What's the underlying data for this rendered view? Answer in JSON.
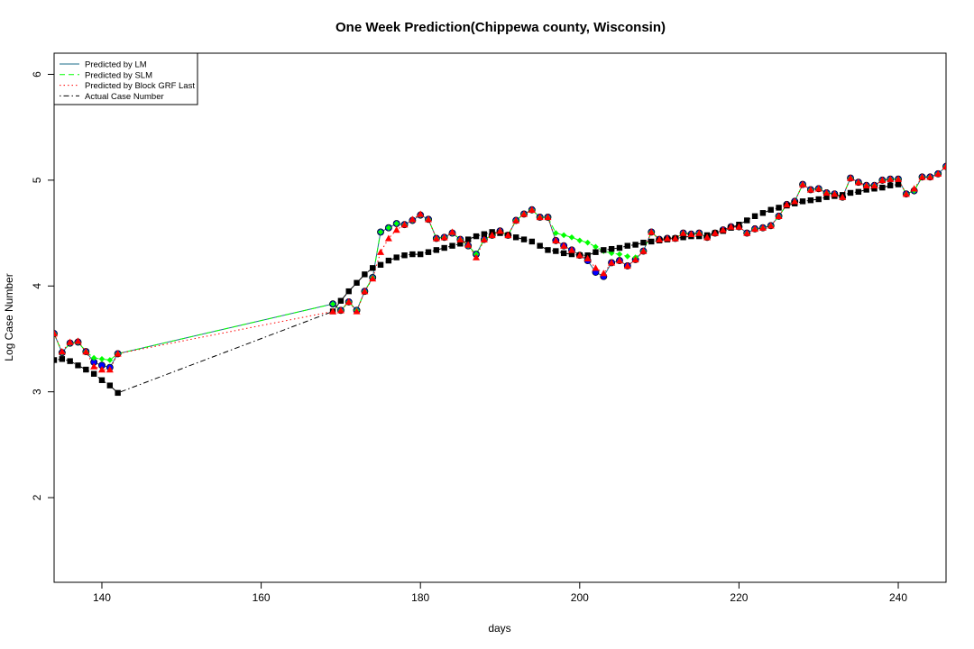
{
  "chart_data": {
    "type": "line",
    "title": "One Week Prediction(Chippewa county, Wisconsin)",
    "xlabel": "days",
    "ylabel": "Log Case Number",
    "xlim": [
      134,
      246
    ],
    "ylim": [
      1.2,
      6.2
    ],
    "xticks": [
      140,
      160,
      180,
      200,
      220,
      240
    ],
    "yticks": [
      2,
      3,
      4,
      5,
      6
    ],
    "legend_position": "top-left",
    "grid": false,
    "series": [
      {
        "name": "Predicted by LM",
        "color": "#0000ff",
        "line_style": "solid",
        "marker": "circle",
        "x": [
          134,
          135,
          136,
          137,
          138,
          139,
          140,
          141,
          142,
          169,
          170,
          171,
          172,
          173,
          174,
          175,
          176,
          177,
          178,
          179,
          180,
          181,
          182,
          183,
          184,
          185,
          186,
          187,
          188,
          189,
          190,
          191,
          192,
          193,
          194,
          195,
          196,
          197,
          198,
          199,
          200,
          201,
          202,
          203,
          204,
          205,
          206,
          207,
          208,
          209,
          210,
          211,
          212,
          213,
          214,
          215,
          216,
          217,
          218,
          219,
          220,
          221,
          222,
          223,
          224,
          225,
          226,
          227,
          228,
          229,
          230,
          231,
          232,
          233,
          234,
          235,
          236,
          237,
          238,
          239,
          240,
          241,
          242,
          243,
          244,
          245,
          246
        ],
        "y": [
          3.55,
          3.37,
          3.46,
          3.47,
          3.38,
          3.28,
          3.25,
          3.23,
          3.36,
          3.83,
          3.77,
          3.85,
          3.77,
          3.95,
          4.08,
          4.51,
          4.55,
          4.59,
          4.58,
          4.62,
          4.67,
          4.63,
          4.45,
          4.46,
          4.5,
          4.44,
          4.38,
          4.3,
          4.44,
          4.48,
          4.52,
          4.48,
          4.62,
          4.68,
          4.72,
          4.65,
          4.65,
          4.43,
          4.38,
          4.34,
          4.29,
          4.24,
          4.13,
          4.09,
          4.22,
          4.24,
          4.19,
          4.25,
          4.33,
          4.51,
          4.44,
          4.45,
          4.45,
          4.5,
          4.49,
          4.5,
          4.46,
          4.5,
          4.53,
          4.56,
          4.56,
          4.5,
          4.54,
          4.55,
          4.57,
          4.66,
          4.77,
          4.8,
          4.96,
          4.91,
          4.92,
          4.88,
          4.87,
          4.84,
          5.02,
          4.98,
          4.95,
          4.95,
          5.0,
          5.01,
          5.01,
          4.87,
          4.9,
          5.03,
          5.03,
          5.06,
          5.13
        ]
      },
      {
        "name": "Predicted by SLM",
        "color": "#00ff00",
        "line_style": "dashed",
        "marker": "diamond",
        "x": [
          134,
          135,
          136,
          137,
          138,
          139,
          140,
          141,
          142,
          169,
          170,
          171,
          172,
          173,
          174,
          175,
          176,
          177,
          178,
          179,
          180,
          181,
          182,
          183,
          184,
          185,
          186,
          187,
          188,
          189,
          190,
          191,
          192,
          193,
          194,
          195,
          196,
          197,
          198,
          199,
          200,
          201,
          202,
          203,
          204,
          205,
          206,
          207,
          208,
          209,
          210,
          211,
          212,
          213,
          214,
          215,
          216,
          217,
          218,
          219,
          220,
          221,
          222,
          223,
          224,
          225,
          226,
          227,
          228,
          229,
          230,
          231,
          232,
          233,
          234,
          235,
          236,
          237,
          238,
          239,
          240,
          241,
          242,
          243,
          244,
          245,
          246
        ],
        "y": [
          3.55,
          3.37,
          3.46,
          3.47,
          3.38,
          3.32,
          3.31,
          3.3,
          3.36,
          3.83,
          3.77,
          3.85,
          3.77,
          3.95,
          4.08,
          4.51,
          4.55,
          4.59,
          4.58,
          4.62,
          4.67,
          4.63,
          4.45,
          4.46,
          4.5,
          4.44,
          4.38,
          4.3,
          4.44,
          4.48,
          4.52,
          4.48,
          4.62,
          4.68,
          4.72,
          4.65,
          4.65,
          4.5,
          4.48,
          4.46,
          4.43,
          4.41,
          4.37,
          4.33,
          4.31,
          4.3,
          4.28,
          4.27,
          4.33,
          4.51,
          4.44,
          4.45,
          4.45,
          4.5,
          4.49,
          4.5,
          4.46,
          4.5,
          4.53,
          4.56,
          4.56,
          4.5,
          4.54,
          4.55,
          4.57,
          4.66,
          4.77,
          4.8,
          4.96,
          4.91,
          4.92,
          4.88,
          4.87,
          4.84,
          5.02,
          4.98,
          4.95,
          4.95,
          5.0,
          5.01,
          5.01,
          4.87,
          4.9,
          5.03,
          5.03,
          5.06,
          5.13
        ]
      },
      {
        "name": "Predicted by Block GRF Last",
        "color": "#ff0000",
        "line_style": "dotted",
        "marker": "triangle",
        "x": [
          134,
          135,
          136,
          137,
          138,
          139,
          140,
          141,
          142,
          169,
          170,
          171,
          172,
          173,
          174,
          175,
          176,
          177,
          178,
          179,
          180,
          181,
          182,
          183,
          184,
          185,
          186,
          187,
          188,
          189,
          190,
          191,
          192,
          193,
          194,
          195,
          196,
          197,
          198,
          199,
          200,
          201,
          202,
          203,
          204,
          205,
          206,
          207,
          208,
          209,
          210,
          211,
          212,
          213,
          214,
          215,
          216,
          217,
          218,
          219,
          220,
          221,
          222,
          223,
          224,
          225,
          226,
          227,
          228,
          229,
          230,
          231,
          232,
          233,
          234,
          235,
          236,
          237,
          238,
          239,
          240,
          241,
          242,
          243,
          244,
          245,
          246
        ],
        "y": [
          3.55,
          3.38,
          3.47,
          3.48,
          3.38,
          3.24,
          3.21,
          3.21,
          3.36,
          3.76,
          3.77,
          3.85,
          3.76,
          3.95,
          4.07,
          4.32,
          4.45,
          4.53,
          4.58,
          4.63,
          4.68,
          4.63,
          4.45,
          4.46,
          4.51,
          4.44,
          4.39,
          4.27,
          4.44,
          4.48,
          4.52,
          4.48,
          4.62,
          4.68,
          4.72,
          4.65,
          4.65,
          4.43,
          4.38,
          4.34,
          4.29,
          4.26,
          4.17,
          4.12,
          4.22,
          4.24,
          4.19,
          4.25,
          4.33,
          4.51,
          4.44,
          4.45,
          4.45,
          4.5,
          4.49,
          4.5,
          4.46,
          4.5,
          4.53,
          4.56,
          4.56,
          4.5,
          4.54,
          4.55,
          4.57,
          4.66,
          4.77,
          4.8,
          4.96,
          4.91,
          4.92,
          4.88,
          4.87,
          4.84,
          5.02,
          4.98,
          4.95,
          4.95,
          5.0,
          5.01,
          5.01,
          4.87,
          4.92,
          5.03,
          5.03,
          5.06,
          5.13
        ]
      },
      {
        "name": "Actual Case Number",
        "color": "#000000",
        "line_style": "dotdash",
        "marker": "square",
        "x": [
          134,
          135,
          136,
          137,
          138,
          139,
          140,
          141,
          142,
          169,
          170,
          171,
          172,
          173,
          174,
          175,
          176,
          177,
          178,
          179,
          180,
          181,
          182,
          183,
          184,
          185,
          186,
          187,
          188,
          189,
          190,
          191,
          192,
          193,
          194,
          195,
          196,
          197,
          198,
          199,
          200,
          201,
          202,
          203,
          204,
          205,
          206,
          207,
          208,
          209,
          210,
          211,
          212,
          213,
          214,
          215,
          216,
          217,
          218,
          219,
          220,
          221,
          222,
          223,
          224,
          225,
          226,
          227,
          228,
          229,
          230,
          231,
          232,
          233,
          234,
          235,
          236,
          237,
          238,
          239,
          240,
          241,
          242,
          243,
          244,
          245,
          246
        ],
        "y": [
          3.3,
          3.31,
          3.29,
          3.25,
          3.21,
          3.17,
          3.11,
          3.06,
          2.99,
          3.76,
          3.86,
          3.95,
          4.03,
          4.11,
          4.17,
          4.2,
          4.24,
          4.27,
          4.29,
          4.3,
          4.3,
          4.32,
          4.34,
          4.36,
          4.38,
          4.4,
          4.44,
          4.47,
          4.49,
          4.51,
          4.5,
          4.48,
          4.46,
          4.44,
          4.42,
          4.38,
          4.34,
          4.33,
          4.31,
          4.3,
          4.29,
          4.29,
          4.32,
          4.34,
          4.35,
          4.36,
          4.38,
          4.39,
          4.41,
          4.42,
          4.43,
          4.44,
          4.45,
          4.46,
          4.47,
          4.47,
          4.48,
          4.5,
          4.52,
          4.55,
          4.58,
          4.62,
          4.66,
          4.69,
          4.72,
          4.74,
          4.76,
          4.78,
          4.8,
          4.81,
          4.82,
          4.84,
          4.85,
          4.86,
          4.88,
          4.89,
          4.91,
          4.92,
          4.93,
          4.95,
          4.96,
          null,
          null,
          null,
          null,
          null,
          null
        ]
      }
    ]
  }
}
